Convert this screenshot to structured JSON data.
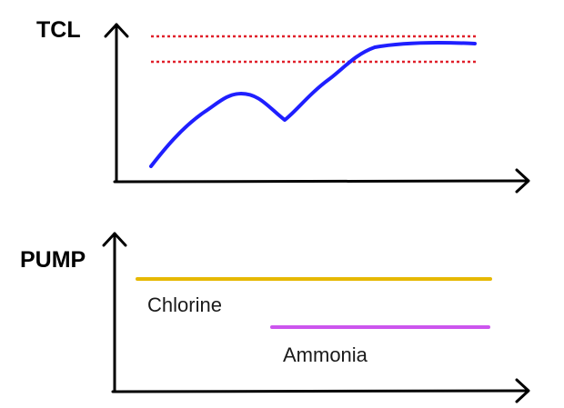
{
  "top_panel": {
    "y_axis_title": "TCL",
    "curve_color": "#1f1fff",
    "threshold_color": "#e0202a",
    "threshold_count": 2
  },
  "bottom_panel": {
    "y_axis_title": "PUMP",
    "lines": [
      {
        "label": "Chlorine",
        "color": "#e6b800"
      },
      {
        "label": "Ammonia",
        "color": "#cc55ee"
      }
    ]
  }
}
